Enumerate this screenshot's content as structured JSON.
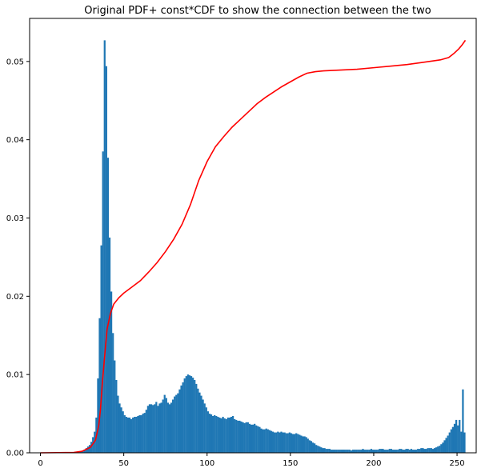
{
  "chart_data": {
    "type": "bar",
    "title": "Original PDF+ const*CDF to show the connection between the two",
    "xlabel": "",
    "ylabel": "",
    "xlim": [
      -6.5,
      261.5
    ],
    "ylim": [
      0,
      0.0555
    ],
    "x_ticks": [
      0,
      50,
      100,
      150,
      200,
      250
    ],
    "y_ticks": [
      0.0,
      0.01,
      0.02,
      0.03,
      0.04,
      0.05
    ],
    "y_tick_labels": [
      "0.00",
      "0.01",
      "0.02",
      "0.03",
      "0.04",
      "0.05"
    ],
    "bar_color": "#1f77b4",
    "line_color": "#ff0000",
    "histogram": {
      "bin_width": 1,
      "values": [
        0,
        0,
        0,
        0,
        0,
        0,
        0,
        0,
        0,
        0,
        0,
        0,
        0,
        0,
        0,
        0,
        0,
        0,
        0,
        0,
        0,
        0,
        5e-05,
        0.0001,
        0.0002,
        0.0003,
        0.0004,
        0.0006,
        0.0008,
        0.001,
        0.0014,
        0.002,
        0.0027,
        0.0045,
        0.0095,
        0.0172,
        0.0265,
        0.0385,
        0.0527,
        0.0494,
        0.0377,
        0.0275,
        0.0206,
        0.0153,
        0.0118,
        0.0093,
        0.0073,
        0.0063,
        0.0058,
        0.0053,
        0.0048,
        0.0046,
        0.0045,
        0.0045,
        0.0043,
        0.0045,
        0.0046,
        0.0046,
        0.0047,
        0.0048,
        0.0048,
        0.005,
        0.0051,
        0.0055,
        0.006,
        0.0062,
        0.0062,
        0.0061,
        0.0062,
        0.0065,
        0.006,
        0.0063,
        0.0064,
        0.0068,
        0.0074,
        0.007,
        0.0064,
        0.0062,
        0.0064,
        0.0068,
        0.0072,
        0.0074,
        0.0076,
        0.0081,
        0.0086,
        0.009,
        0.0095,
        0.0098,
        0.01,
        0.0099,
        0.0098,
        0.0096,
        0.0093,
        0.0088,
        0.0082,
        0.0077,
        0.0073,
        0.0068,
        0.0063,
        0.0058,
        0.0053,
        0.005,
        0.0049,
        0.0047,
        0.0048,
        0.0047,
        0.0046,
        0.0045,
        0.0044,
        0.0046,
        0.0044,
        0.0043,
        0.0045,
        0.0045,
        0.0046,
        0.0047,
        0.0043,
        0.0042,
        0.0041,
        0.0041,
        0.004,
        0.0039,
        0.0038,
        0.0039,
        0.0039,
        0.0037,
        0.0036,
        0.0036,
        0.0037,
        0.0035,
        0.0034,
        0.0033,
        0.0031,
        0.003,
        0.003,
        0.0031,
        0.003,
        0.0029,
        0.0028,
        0.0027,
        0.0026,
        0.0026,
        0.0027,
        0.0026,
        0.0027,
        0.0026,
        0.0026,
        0.0025,
        0.0025,
        0.0026,
        0.0025,
        0.0024,
        0.0024,
        0.0025,
        0.0024,
        0.0023,
        0.0022,
        0.0021,
        0.0021,
        0.002,
        0.0018,
        0.0016,
        0.0015,
        0.0013,
        0.0012,
        0.001,
        0.0009,
        0.0008,
        0.0007,
        0.0006,
        0.0006,
        0.0005,
        0.0005,
        0.0005,
        0.0004,
        0.0004,
        0.0004,
        0.0004,
        0.0004,
        0.0004,
        0.0004,
        0.0004,
        0.0004,
        0.0004,
        0.0004,
        0.0004,
        0.0003,
        0.0004,
        0.0004,
        0.0004,
        0.0004,
        0.0004,
        0.0004,
        0.0005,
        0.0004,
        0.0004,
        0.0004,
        0.0004,
        0.0005,
        0.0004,
        0.0004,
        0.0004,
        0.0004,
        0.0005,
        0.0005,
        0.0005,
        0.0004,
        0.0004,
        0.0004,
        0.0005,
        0.0005,
        0.0004,
        0.0004,
        0.0004,
        0.0004,
        0.0005,
        0.0005,
        0.0004,
        0.0004,
        0.0005,
        0.0005,
        0.0004,
        0.0005,
        0.0004,
        0.0004,
        0.0004,
        0.0005,
        0.0005,
        0.0006,
        0.0006,
        0.0005,
        0.0005,
        0.0006,
        0.0006,
        0.0006,
        0.0005,
        0.0006,
        0.0007,
        0.0008,
        0.0009,
        0.0011,
        0.0013,
        0.0016,
        0.0019,
        0.0022,
        0.0026,
        0.003,
        0.0033,
        0.0037,
        0.0042,
        0.0035,
        0.0042,
        0.0027,
        0.0081,
        0.0026
      ]
    },
    "line": {
      "name": "",
      "points": [
        [
          0,
          0
        ],
        [
          20,
          5e-05
        ],
        [
          25,
          0.0002
        ],
        [
          30,
          0.0007
        ],
        [
          33,
          0.0016
        ],
        [
          35,
          0.0035
        ],
        [
          36,
          0.0055
        ],
        [
          37,
          0.0085
        ],
        [
          38,
          0.011
        ],
        [
          39,
          0.0135
        ],
        [
          40,
          0.0158
        ],
        [
          42,
          0.0178
        ],
        [
          44,
          0.019
        ],
        [
          47,
          0.0198
        ],
        [
          50,
          0.0204
        ],
        [
          55,
          0.0212
        ],
        [
          60,
          0.022
        ],
        [
          65,
          0.0231
        ],
        [
          70,
          0.0243
        ],
        [
          75,
          0.0257
        ],
        [
          80,
          0.0273
        ],
        [
          85,
          0.0292
        ],
        [
          90,
          0.0317
        ],
        [
          95,
          0.0348
        ],
        [
          100,
          0.0372
        ],
        [
          105,
          0.0391
        ],
        [
          110,
          0.0404
        ],
        [
          115,
          0.0416
        ],
        [
          120,
          0.0426
        ],
        [
          125,
          0.0436
        ],
        [
          130,
          0.0446
        ],
        [
          135,
          0.0454
        ],
        [
          140,
          0.0461
        ],
        [
          145,
          0.0468
        ],
        [
          150,
          0.0474
        ],
        [
          155,
          0.048
        ],
        [
          160,
          0.0485
        ],
        [
          165,
          0.0487
        ],
        [
          170,
          0.0488
        ],
        [
          180,
          0.0489
        ],
        [
          190,
          0.049
        ],
        [
          200,
          0.0492
        ],
        [
          210,
          0.0494
        ],
        [
          220,
          0.0496
        ],
        [
          230,
          0.0499
        ],
        [
          240,
          0.0502
        ],
        [
          245,
          0.0505
        ],
        [
          248,
          0.051
        ],
        [
          251,
          0.0516
        ],
        [
          253,
          0.0521
        ],
        [
          255,
          0.0527
        ]
      ]
    }
  }
}
